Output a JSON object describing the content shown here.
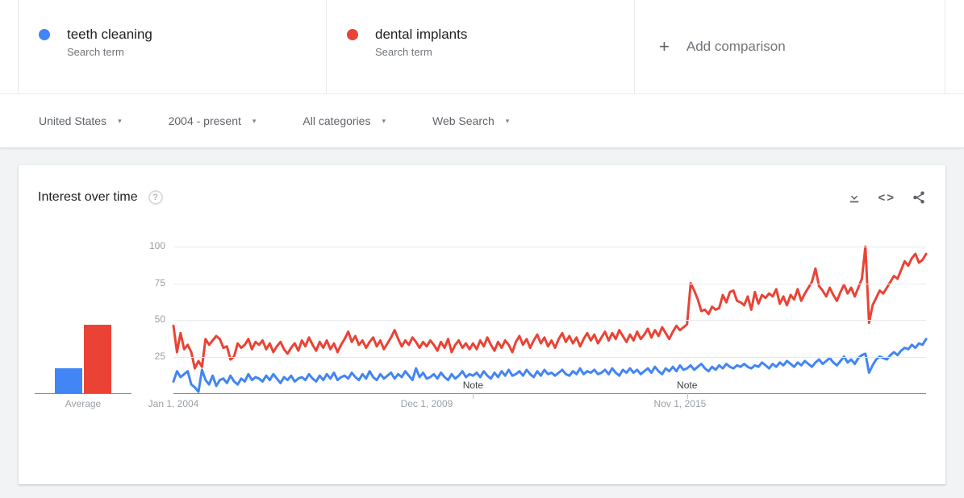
{
  "terms": [
    {
      "label": "teeth cleaning",
      "sublabel": "Search term",
      "color": "#4285f4"
    },
    {
      "label": "dental implants",
      "sublabel": "Search term",
      "color": "#ea4335"
    }
  ],
  "add_comparison": {
    "plus": "+",
    "label": "Add comparison"
  },
  "filters": {
    "geo": "United States",
    "time": "2004 - present",
    "category": "All categories",
    "search_type": "Web Search",
    "caret": "▾"
  },
  "widget": {
    "title": "Interest over time",
    "help": "?",
    "embed_glyph": "<>"
  },
  "chart_data": {
    "type": "line",
    "title": "Interest over time",
    "ylim": [
      0,
      100
    ],
    "y_ticks": [
      25,
      50,
      75,
      100
    ],
    "grid": true,
    "legend_position": "none",
    "months_total": 212,
    "x_start": "Jan 2004",
    "x_tick_labels": [
      {
        "label": "Jan 1, 2004",
        "month": 0
      },
      {
        "label": "Dec 1, 2009",
        "month": 71
      },
      {
        "label": "Nov 1, 2015",
        "month": 142
      }
    ],
    "notes": [
      {
        "label": "Note",
        "month": 84
      },
      {
        "label": "Note",
        "month": 144
      }
    ],
    "average": {
      "label": "Average",
      "values": [
        {
          "name": "teeth cleaning",
          "value": 17,
          "color": "#4285f4"
        },
        {
          "name": "dental implants",
          "value": 47,
          "color": "#ea4335"
        }
      ]
    },
    "series": [
      {
        "name": "teeth cleaning",
        "color": "#4285f4",
        "values": [
          8,
          15,
          11,
          13,
          15,
          6,
          4,
          1,
          16,
          9,
          6,
          12,
          5,
          9,
          10,
          7,
          12,
          8,
          6,
          10,
          8,
          13,
          9,
          11,
          10,
          8,
          12,
          9,
          13,
          10,
          7,
          11,
          9,
          12,
          8,
          10,
          11,
          9,
          13,
          10,
          8,
          12,
          9,
          13,
          10,
          14,
          9,
          11,
          12,
          10,
          14,
          11,
          9,
          13,
          10,
          15,
          11,
          9,
          13,
          10,
          12,
          14,
          10,
          13,
          11,
          15,
          12,
          9,
          17,
          11,
          14,
          10,
          11,
          13,
          10,
          14,
          11,
          9,
          13,
          10,
          12,
          15,
          11,
          13,
          12,
          14,
          11,
          15,
          12,
          10,
          14,
          11,
          15,
          12,
          16,
          12,
          13,
          15,
          12,
          16,
          13,
          11,
          15,
          12,
          16,
          13,
          14,
          12,
          14,
          16,
          13,
          12,
          15,
          13,
          17,
          13,
          15,
          14,
          16,
          13,
          14,
          16,
          13,
          17,
          14,
          12,
          16,
          14,
          17,
          14,
          16,
          13,
          15,
          17,
          14,
          18,
          15,
          13,
          17,
          15,
          18,
          15,
          19,
          16,
          17,
          19,
          16,
          18,
          20,
          17,
          15,
          18,
          16,
          19,
          17,
          20,
          18,
          17,
          19,
          18,
          20,
          18,
          17,
          19,
          18,
          21,
          19,
          17,
          20,
          18,
          21,
          19,
          22,
          20,
          18,
          21,
          19,
          22,
          20,
          18,
          21,
          23,
          20,
          22,
          24,
          21,
          19,
          22,
          25,
          21,
          23,
          20,
          24,
          26,
          27,
          14,
          19,
          23,
          25,
          24,
          23,
          26,
          28,
          26,
          29,
          31,
          30,
          33,
          31,
          34,
          33,
          37
        ]
      },
      {
        "name": "dental implants",
        "color": "#ea4335",
        "values": [
          46,
          28,
          41,
          30,
          33,
          28,
          17,
          22,
          18,
          37,
          33,
          36,
          39,
          37,
          31,
          32,
          23,
          25,
          34,
          31,
          33,
          37,
          30,
          35,
          33,
          36,
          30,
          34,
          28,
          32,
          35,
          30,
          27,
          31,
          34,
          29,
          36,
          32,
          38,
          33,
          29,
          35,
          31,
          36,
          30,
          34,
          28,
          33,
          37,
          42,
          35,
          39,
          33,
          36,
          31,
          35,
          38,
          32,
          36,
          30,
          34,
          38,
          43,
          37,
          32,
          36,
          33,
          38,
          35,
          31,
          35,
          32,
          36,
          33,
          29,
          35,
          31,
          37,
          28,
          33,
          36,
          31,
          34,
          30,
          34,
          30,
          36,
          32,
          38,
          33,
          29,
          35,
          31,
          36,
          33,
          28,
          35,
          39,
          33,
          37,
          31,
          36,
          40,
          34,
          38,
          32,
          36,
          31,
          37,
          41,
          35,
          39,
          34,
          38,
          32,
          37,
          41,
          36,
          40,
          34,
          38,
          42,
          36,
          41,
          37,
          43,
          39,
          35,
          40,
          36,
          42,
          37,
          40,
          44,
          38,
          43,
          39,
          45,
          41,
          37,
          42,
          46,
          43,
          45,
          47,
          75,
          70,
          64,
          56,
          57,
          54,
          59,
          57,
          58,
          67,
          62,
          69,
          70,
          63,
          62,
          60,
          66,
          57,
          69,
          61,
          67,
          65,
          68,
          66,
          71,
          61,
          66,
          60,
          67,
          64,
          71,
          63,
          68,
          72,
          76,
          85,
          73,
          70,
          66,
          72,
          67,
          63,
          69,
          74,
          68,
          72,
          66,
          72,
          78,
          100,
          48,
          60,
          65,
          70,
          68,
          72,
          76,
          80,
          78,
          84,
          90,
          87,
          92,
          95,
          89,
          91,
          95
        ]
      }
    ]
  }
}
